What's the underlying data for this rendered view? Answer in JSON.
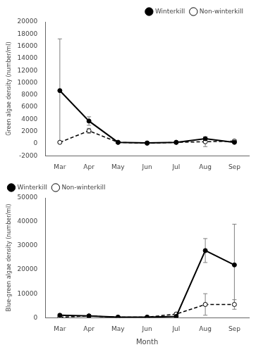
{
  "chart_data": [
    {
      "type": "line",
      "categories": [
        "Mar",
        "Apr",
        "May",
        "Jun",
        "Jul",
        "Aug",
        "Sep"
      ],
      "series": [
        {
          "name": "Winterkill",
          "color": "black",
          "marker": "circle",
          "line_style": "solid",
          "values": [
            8700,
            3700,
            200,
            100,
            200,
            800,
            200
          ],
          "errors": [
            8500,
            700,
            100,
            50,
            100,
            300,
            100
          ]
        },
        {
          "name": "Non-winterkill",
          "color": "black",
          "marker": "open_circle",
          "line_style": "dashed",
          "values": [
            200,
            2100,
            200,
            50,
            200,
            300,
            400
          ],
          "errors": [
            100,
            400,
            100,
            30,
            100,
            800,
            200
          ]
        }
      ],
      "ylabel": "Green algae density (number/ml)",
      "ylim": [
        -2000,
        20000
      ],
      "yticks": [
        -2000,
        0,
        2000,
        4000,
        6000,
        8000,
        10000,
        12000,
        14000,
        16000,
        18000,
        20000
      ],
      "grid": false,
      "legend": "upper right"
    },
    {
      "type": "line",
      "categories": [
        "Mar",
        "Apr",
        "May",
        "Jun",
        "Jul",
        "Aug",
        "Sep"
      ],
      "series": [
        {
          "name": "Winterkill",
          "color": "black",
          "marker": "circle",
          "line_style": "solid",
          "values": [
            1000,
            700,
            200,
            200,
            500,
            28000,
            22000
          ],
          "errors": [
            500,
            300,
            100,
            100,
            300,
            5000,
            17000
          ]
        },
        {
          "name": "Non-winterkill",
          "color": "black",
          "marker": "open_circle",
          "line_style": "dashed",
          "values": [
            200,
            700,
            200,
            200,
            1500,
            5500,
            5500
          ],
          "errors": [
            100,
            300,
            100,
            100,
            500,
            4500,
            2000
          ]
        }
      ],
      "xlabel": "Month",
      "ylabel": "Blue-green algae density (number/ml)",
      "ylim": [
        0,
        50000
      ],
      "yticks": [
        0,
        10000,
        20000,
        30000,
        40000,
        50000
      ],
      "grid": false,
      "legend": "upper left"
    }
  ]
}
